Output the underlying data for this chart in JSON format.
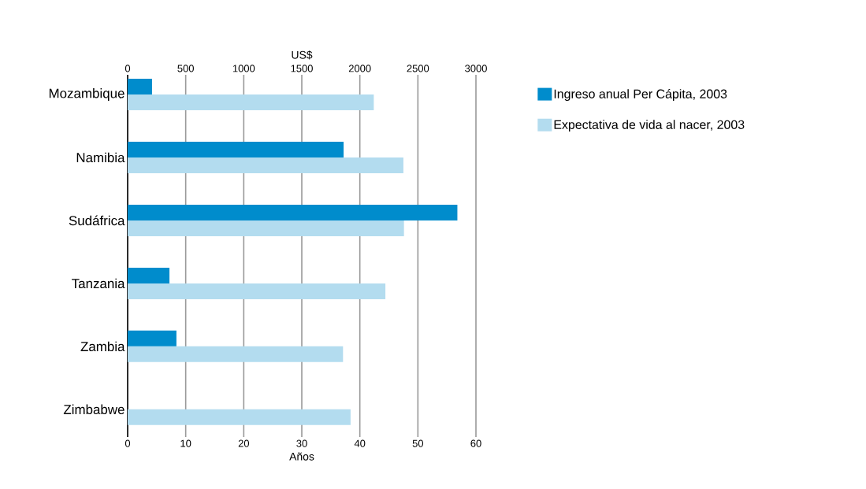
{
  "chart_data": {
    "type": "bar",
    "orientation": "horizontal",
    "xlabel": "Años",
    "x2label": "US$",
    "categories": [
      "Mozambique",
      "Namibia",
      "Sudáfrica",
      "Tanzania",
      "Zambia",
      "Zimbabwe"
    ],
    "series": [
      {
        "name": "Ingreso anual Per Cápita, 2003",
        "color": "#008ccc",
        "axis": "x2",
        "values": [
          210,
          1860,
          2840,
          360,
          420,
          null
        ]
      },
      {
        "name": "Expectativa de vida al nacer, 2003",
        "color": "#b3dcef",
        "values": [
          42.4,
          47.5,
          47.6,
          44.4,
          37.1,
          38.4
        ]
      }
    ],
    "xlim": [
      0,
      60
    ],
    "xticks": [
      0,
      10,
      20,
      30,
      40,
      50,
      60
    ],
    "x2lim": [
      0,
      3000
    ],
    "x2ticks": [
      0,
      500,
      1000,
      1500,
      2000,
      2500,
      3000
    ],
    "grid": "x",
    "legend": "right"
  }
}
